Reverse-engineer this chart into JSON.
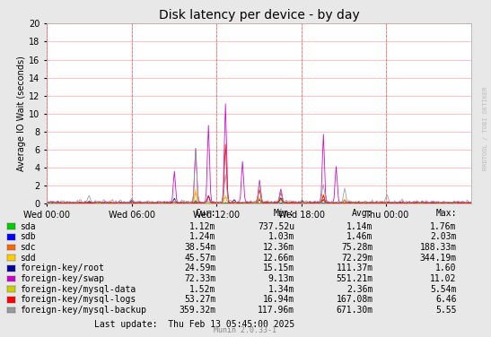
{
  "title": "Disk latency per device - by day",
  "ylabel": "Average IO Wait (seconds)",
  "background_color": "#e8e8e8",
  "plot_bg_color": "#ffffff",
  "grid_color": "#ffaaaa",
  "ylim": [
    0,
    20
  ],
  "yticks": [
    0,
    2,
    4,
    6,
    8,
    10,
    12,
    14,
    16,
    18,
    20
  ],
  "xtick_labels": [
    "Wed 00:00",
    "Wed 06:00",
    "Wed 12:00",
    "Wed 18:00",
    "Thu 00:00"
  ],
  "vline_color": "#ff6666",
  "series": [
    {
      "label": "sda",
      "color": "#00cc00"
    },
    {
      "label": "sdb",
      "color": "#0000ff"
    },
    {
      "label": "sdc",
      "color": "#ff6600"
    },
    {
      "label": "sdd",
      "color": "#ffcc00"
    },
    {
      "label": "foreign-key/root",
      "color": "#000099"
    },
    {
      "label": "foreign-key/swap",
      "color": "#cc00cc"
    },
    {
      "label": "foreign-key/mysql-data",
      "color": "#cccc00"
    },
    {
      "label": "foreign-key/mysql-logs",
      "color": "#ff0000"
    },
    {
      "label": "foreign-key/mysql-backup",
      "color": "#999999"
    }
  ],
  "legend_data": [
    {
      "label": "sda",
      "cur": "1.12m",
      "min": "737.52u",
      "avg": "1.14m",
      "max": "1.76m"
    },
    {
      "label": "sdb",
      "cur": "1.24m",
      "min": "1.03m",
      "avg": "1.46m",
      "max": "2.03m"
    },
    {
      "label": "sdc",
      "cur": "38.54m",
      "min": "12.36m",
      "avg": "75.28m",
      "max": "188.33m"
    },
    {
      "label": "sdd",
      "cur": "45.57m",
      "min": "12.66m",
      "avg": "72.29m",
      "max": "344.19m"
    },
    {
      "label": "foreign-key/root",
      "cur": "24.59m",
      "min": "15.15m",
      "avg": "111.37m",
      "max": "1.60"
    },
    {
      "label": "foreign-key/swap",
      "cur": "72.33m",
      "min": "9.13m",
      "avg": "551.21m",
      "max": "11.02"
    },
    {
      "label": "foreign-key/mysql-data",
      "cur": "1.52m",
      "min": "1.34m",
      "avg": "2.36m",
      "max": "5.54m"
    },
    {
      "label": "foreign-key/mysql-logs",
      "cur": "53.27m",
      "min": "16.94m",
      "avg": "167.08m",
      "max": "6.46"
    },
    {
      "label": "foreign-key/mysql-backup",
      "cur": "359.32m",
      "min": "117.96m",
      "avg": "671.30m",
      "max": "5.55"
    }
  ],
  "footer": "Last update:  Thu Feb 13 05:45:00 2025",
  "munin_version": "Munin 2.0.33-1",
  "watermark": "RRDTOOL / TOBI OETIKER"
}
